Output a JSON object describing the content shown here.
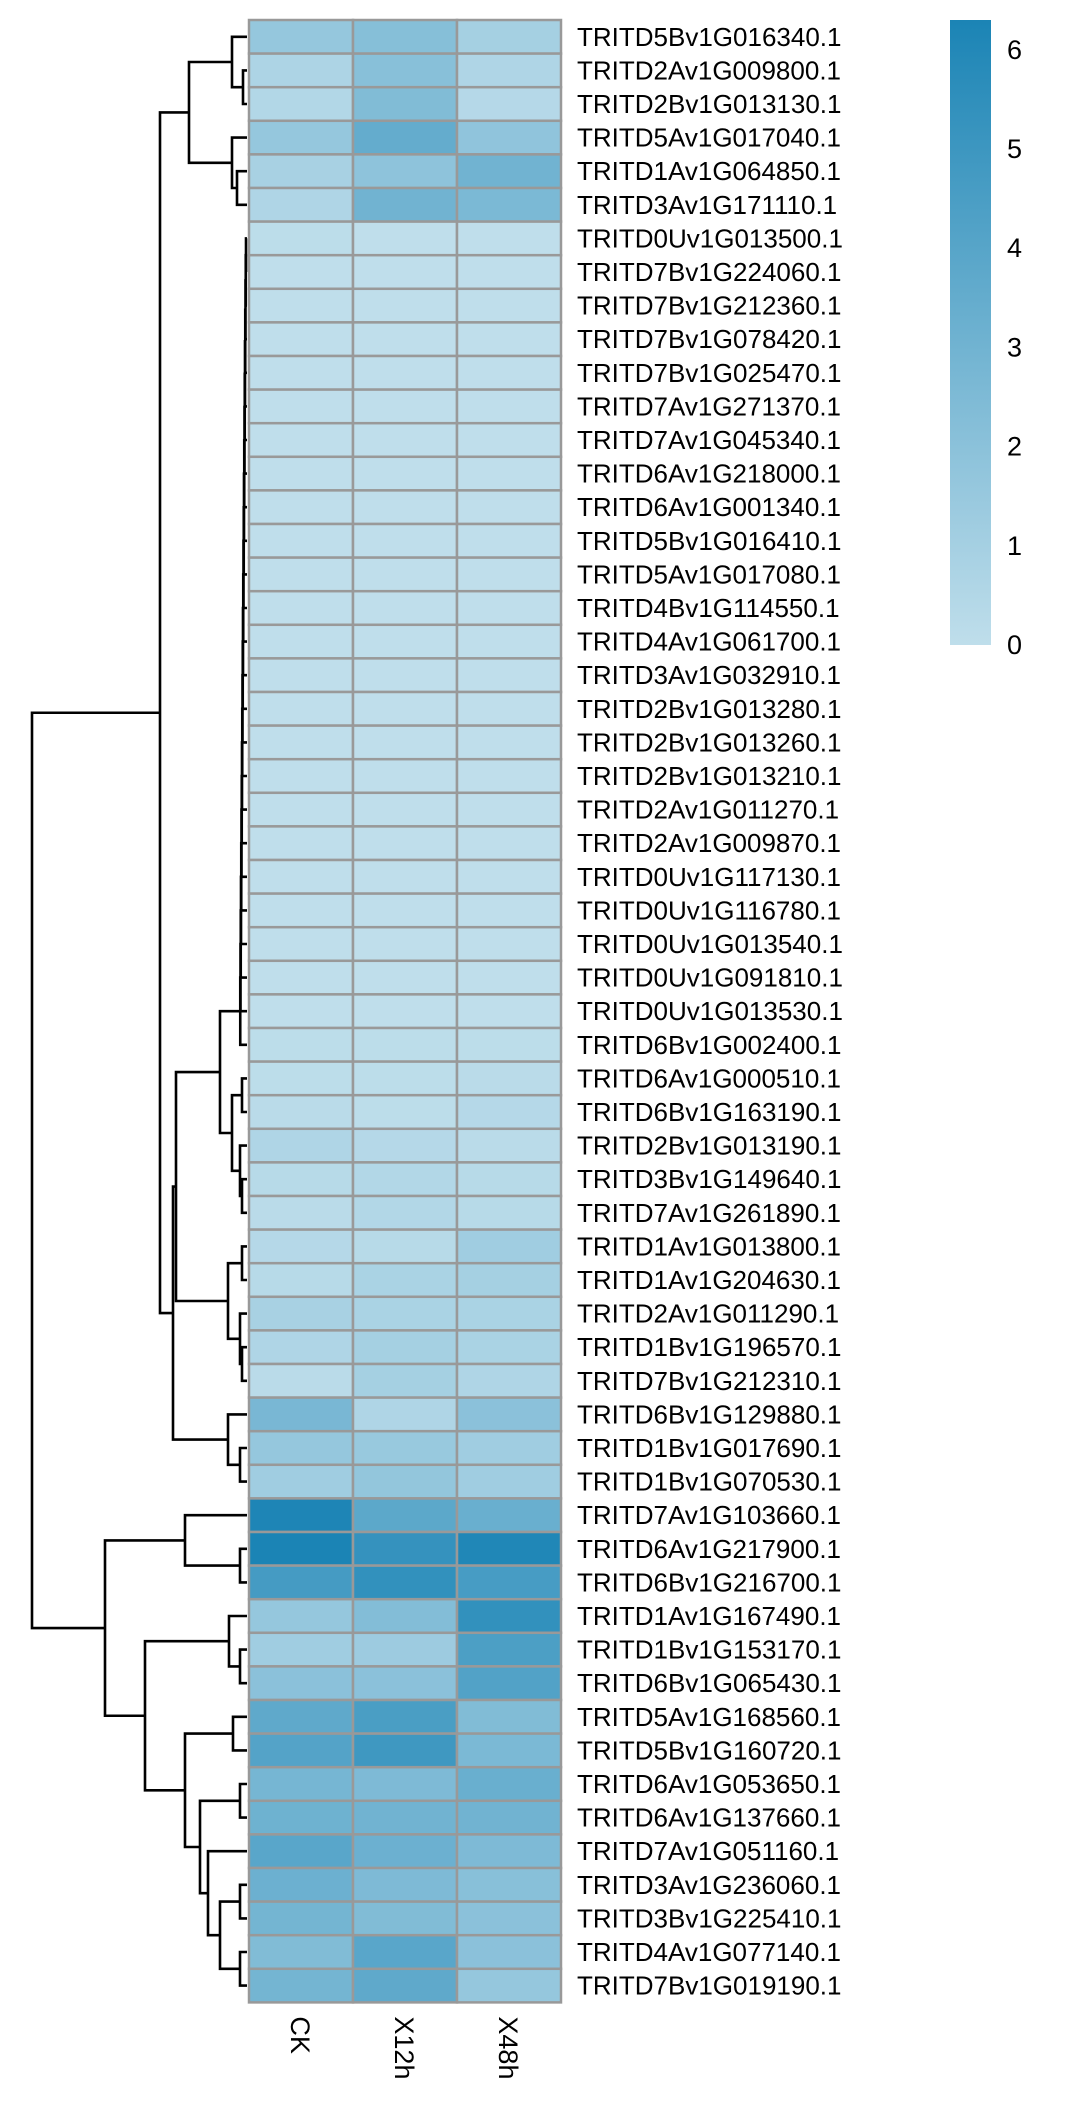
{
  "chart_data": {
    "type": "heatmap",
    "columns": [
      "CK",
      "X12h",
      "X48h"
    ],
    "rows": [
      "TRITD5Bv1G016340.1",
      "TRITD2Av1G009800.1",
      "TRITD2Bv1G013130.1",
      "TRITD5Av1G017040.1",
      "TRITD1Av1G064850.1",
      "TRITD3Av1G171110.1",
      "TRITD0Uv1G013500.1",
      "TRITD7Bv1G224060.1",
      "TRITD7Bv1G212360.1",
      "TRITD7Bv1G078420.1",
      "TRITD7Bv1G025470.1",
      "TRITD7Av1G271370.1",
      "TRITD7Av1G045340.1",
      "TRITD6Av1G218000.1",
      "TRITD6Av1G001340.1",
      "TRITD5Bv1G016410.1",
      "TRITD5Av1G017080.1",
      "TRITD4Bv1G114550.1",
      "TRITD4Av1G061700.1",
      "TRITD3Av1G032910.1",
      "TRITD2Bv1G013280.1",
      "TRITD2Bv1G013260.1",
      "TRITD2Bv1G013210.1",
      "TRITD2Av1G011270.1",
      "TRITD2Av1G009870.1",
      "TRITD0Uv1G117130.1",
      "TRITD0Uv1G116780.1",
      "TRITD0Uv1G013540.1",
      "TRITD0Uv1G091810.1",
      "TRITD0Uv1G013530.1",
      "TRITD6Bv1G002400.1",
      "TRITD6Av1G000510.1",
      "TRITD6Bv1G163190.1",
      "TRITD2Bv1G013190.1",
      "TRITD3Bv1G149640.1",
      "TRITD7Av1G261890.1",
      "TRITD1Av1G013800.1",
      "TRITD1Av1G204630.1",
      "TRITD2Av1G011290.1",
      "TRITD1Bv1G196570.1",
      "TRITD7Bv1G212310.1",
      "TRITD6Bv1G129880.1",
      "TRITD1Bv1G017690.1",
      "TRITD1Bv1G070530.1",
      "TRITD7Av1G103660.1",
      "TRITD6Av1G217900.1",
      "TRITD6Bv1G216700.1",
      "TRITD1Av1G167490.1",
      "TRITD1Bv1G153170.1",
      "TRITD6Bv1G065430.1",
      "TRITD5Av1G168560.1",
      "TRITD5Bv1G160720.1",
      "TRITD6Av1G053650.1",
      "TRITD6Av1G137660.1",
      "TRITD7Av1G051160.1",
      "TRITD3Av1G236060.1",
      "TRITD3Bv1G225410.1",
      "TRITD4Av1G077140.1",
      "TRITD7Bv1G019190.1"
    ],
    "values": [
      [
        1.6,
        2.2,
        1.0
      ],
      [
        0.7,
        2.1,
        0.6
      ],
      [
        0.5,
        2.4,
        0.4
      ],
      [
        1.6,
        3.5,
        1.8
      ],
      [
        0.9,
        1.9,
        3.0
      ],
      [
        0.6,
        3.0,
        2.6
      ],
      [
        0.1,
        0.0,
        0.0
      ],
      [
        0.0,
        0.0,
        0.0
      ],
      [
        0.0,
        0.0,
        0.0
      ],
      [
        0.0,
        0.0,
        0.0
      ],
      [
        0.0,
        0.0,
        0.0
      ],
      [
        0.0,
        0.0,
        0.0
      ],
      [
        0.0,
        0.0,
        0.0
      ],
      [
        0.0,
        0.0,
        0.0
      ],
      [
        0.0,
        0.0,
        0.0
      ],
      [
        0.0,
        0.0,
        0.0
      ],
      [
        0.0,
        0.0,
        0.0
      ],
      [
        0.0,
        0.0,
        0.0
      ],
      [
        0.0,
        0.0,
        0.0
      ],
      [
        0.0,
        0.0,
        0.0
      ],
      [
        0.0,
        0.0,
        0.0
      ],
      [
        0.0,
        0.0,
        0.0
      ],
      [
        0.0,
        0.0,
        0.0
      ],
      [
        0.0,
        0.0,
        0.0
      ],
      [
        0.0,
        0.0,
        0.0
      ],
      [
        0.0,
        0.0,
        0.0
      ],
      [
        0.0,
        0.0,
        0.0
      ],
      [
        0.0,
        0.0,
        0.0
      ],
      [
        0.0,
        0.0,
        0.0
      ],
      [
        0.0,
        0.0,
        0.0
      ],
      [
        0.1,
        0.1,
        0.1
      ],
      [
        0.1,
        0.1,
        0.2
      ],
      [
        0.2,
        0.1,
        0.4
      ],
      [
        0.6,
        0.4,
        0.2
      ],
      [
        0.3,
        0.5,
        0.3
      ],
      [
        0.2,
        0.5,
        0.3
      ],
      [
        0.4,
        0.3,
        1.2
      ],
      [
        0.3,
        0.8,
        1.0
      ],
      [
        0.9,
        0.8,
        0.8
      ],
      [
        0.6,
        1.0,
        0.8
      ],
      [
        0.2,
        1.0,
        0.6
      ],
      [
        2.7,
        0.6,
        2.0
      ],
      [
        1.6,
        1.5,
        1.2
      ],
      [
        1.2,
        1.7,
        1.2
      ],
      [
        6.2,
        3.8,
        3.3
      ],
      [
        6.3,
        5.3,
        6.1
      ],
      [
        4.7,
        5.4,
        4.6
      ],
      [
        1.6,
        2.3,
        5.4
      ],
      [
        1.2,
        1.3,
        4.4
      ],
      [
        2.0,
        2.0,
        4.2
      ],
      [
        3.7,
        4.5,
        2.4
      ],
      [
        4.1,
        4.9,
        2.6
      ],
      [
        2.8,
        2.5,
        3.3
      ],
      [
        3.1,
        3.0,
        3.0
      ],
      [
        3.9,
        3.2,
        2.5
      ],
      [
        3.2,
        2.5,
        2.1
      ],
      [
        2.9,
        2.4,
        2.0
      ],
      [
        2.4,
        3.9,
        2.0
      ],
      [
        2.9,
        3.7,
        1.6
      ]
    ],
    "color_scale": {
      "min": 0,
      "max": 6.3,
      "low": "#bfdeeb",
      "high": "#1b84b5"
    },
    "legend_ticks": [
      0,
      1,
      2,
      3,
      4,
      5,
      6
    ],
    "legend_position": "top-right",
    "row_dendrogram": true
  }
}
